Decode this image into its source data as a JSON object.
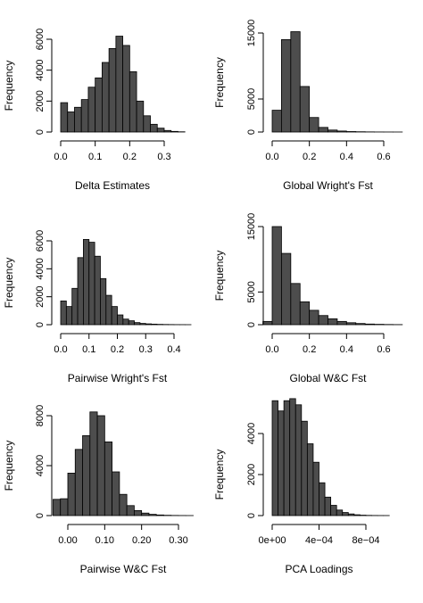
{
  "figure": {
    "bar_fill": "#4d4d4d",
    "bar_stroke": "#000000"
  },
  "chart_data": [
    {
      "type": "bar",
      "xlabel": "Delta Estimates",
      "ylabel": "Frequency",
      "bin_edges": [
        0,
        0.02,
        0.04,
        0.06,
        0.08,
        0.1,
        0.12,
        0.14,
        0.16,
        0.18,
        0.2,
        0.22,
        0.24,
        0.26,
        0.28,
        0.3,
        0.32,
        0.34,
        0.36
      ],
      "values": [
        1900,
        1300,
        1600,
        2100,
        2900,
        3500,
        4500,
        5400,
        6200,
        5600,
        3900,
        2000,
        1050,
        500,
        250,
        100,
        40,
        15
      ],
      "xticks": [
        0.0,
        0.1,
        0.2,
        0.3
      ],
      "xtick_labels": [
        "0.0",
        "0.1",
        "0.2",
        "0.3"
      ],
      "yticks": [
        0,
        2000,
        4000,
        6000
      ],
      "ytick_labels": [
        "0",
        "2000",
        "4000",
        "6000"
      ],
      "xlim": [
        0,
        0.36
      ],
      "ylim": [
        0,
        6000
      ]
    },
    {
      "type": "bar",
      "xlabel": "Global Wright's Fst",
      "ylabel": "Frequency",
      "bin_edges": [
        0,
        0.05,
        0.1,
        0.15,
        0.2,
        0.25,
        0.3,
        0.35,
        0.4,
        0.45,
        0.5,
        0.55,
        0.6,
        0.65,
        0.7
      ],
      "values": [
        3300,
        14000,
        15200,
        6900,
        2200,
        700,
        300,
        150,
        70,
        40,
        20,
        10,
        5,
        3
      ],
      "xticks": [
        0.0,
        0.2,
        0.4,
        0.6
      ],
      "xtick_labels": [
        "0.0",
        "0.2",
        "0.4",
        "0.6"
      ],
      "yticks": [
        0,
        5000,
        15000
      ],
      "ytick_labels": [
        "0",
        "5000",
        "15000"
      ],
      "xlim": [
        0,
        0.7
      ],
      "ylim": [
        0,
        15000
      ]
    },
    {
      "type": "bar",
      "xlabel": "Pairwise Wright's Fst",
      "ylabel": "Frequency",
      "bin_edges": [
        0,
        0.02,
        0.04,
        0.06,
        0.08,
        0.1,
        0.12,
        0.14,
        0.16,
        0.18,
        0.2,
        0.22,
        0.24,
        0.26,
        0.28,
        0.3,
        0.32,
        0.34,
        0.36,
        0.38,
        0.4,
        0.42,
        0.44,
        0.46
      ],
      "values": [
        1700,
        1300,
        2600,
        4800,
        6100,
        5900,
        4900,
        3300,
        2100,
        1300,
        700,
        400,
        280,
        150,
        90,
        60,
        40,
        25,
        15,
        10,
        6,
        4,
        2
      ],
      "xticks": [
        0.0,
        0.1,
        0.2,
        0.3,
        0.4
      ],
      "xtick_labels": [
        "0.0",
        "0.1",
        "0.2",
        "0.3",
        "0.4"
      ],
      "yticks": [
        0,
        2000,
        4000,
        6000
      ],
      "ytick_labels": [
        "0",
        "2000",
        "4000",
        "6000"
      ],
      "xlim": [
        0,
        0.46
      ],
      "ylim": [
        0,
        6000
      ]
    },
    {
      "type": "bar",
      "xlabel": "Global W&C Fst",
      "ylabel": "Frequency",
      "bin_edges": [
        -0.05,
        0,
        0.05,
        0.1,
        0.15,
        0.2,
        0.25,
        0.3,
        0.35,
        0.4,
        0.45,
        0.5,
        0.55,
        0.6,
        0.65,
        0.7
      ],
      "values": [
        500,
        15000,
        10900,
        6300,
        3500,
        2200,
        1400,
        900,
        500,
        300,
        180,
        100,
        60,
        30,
        15
      ],
      "xticks": [
        0.0,
        0.2,
        0.4,
        0.6
      ],
      "xtick_labels": [
        "0.0",
        "0.2",
        "0.4",
        "0.6"
      ],
      "yticks": [
        0,
        5000,
        15000
      ],
      "ytick_labels": [
        "0",
        "5000",
        "15000"
      ],
      "xlim": [
        -0.05,
        0.7
      ],
      "ylim": [
        0,
        15000
      ]
    },
    {
      "type": "bar",
      "xlabel": "Pairwise W&C Fst",
      "ylabel": "Frequency",
      "bin_edges": [
        -0.04,
        -0.02,
        0,
        0.02,
        0.04,
        0.06,
        0.08,
        0.1,
        0.12,
        0.14,
        0.16,
        0.18,
        0.2,
        0.22,
        0.24,
        0.26,
        0.28,
        0.3,
        0.32,
        0.34
      ],
      "values": [
        1300,
        1350,
        3400,
        5300,
        6400,
        8300,
        8000,
        5900,
        3500,
        1700,
        800,
        400,
        200,
        100,
        50,
        25,
        12,
        6,
        3
      ],
      "xticks": [
        0.0,
        0.1,
        0.2,
        0.3
      ],
      "xtick_labels": [
        "0.00",
        "0.10",
        "0.20",
        "0.30"
      ],
      "yticks": [
        0,
        4000,
        8000
      ],
      "ytick_labels": [
        "0",
        "4000",
        "8000"
      ],
      "xlim": [
        -0.04,
        0.34
      ],
      "ylim": [
        0,
        8000
      ]
    },
    {
      "type": "bar",
      "xlabel": "PCA Loadings",
      "ylabel": "Frequency",
      "bin_edges": [
        0,
        5e-05,
        0.0001,
        0.00015,
        0.0002,
        0.00025,
        0.0003,
        0.00035,
        0.0004,
        0.00045,
        0.0005,
        0.00055,
        0.0006,
        0.00065,
        0.0007,
        0.00075,
        0.0008,
        0.00085,
        0.0009,
        0.00095,
        0.001
      ],
      "values": [
        5600,
        5100,
        5600,
        5700,
        5400,
        4600,
        3500,
        2600,
        1600,
        900,
        500,
        270,
        150,
        80,
        40,
        20,
        10,
        5,
        3,
        2
      ],
      "xticks": [
        0,
        0.0004,
        0.0008
      ],
      "xtick_labels": [
        "0e+00",
        "4e−04",
        "8e−04"
      ],
      "yticks": [
        0,
        2000,
        4000
      ],
      "ytick_labels": [
        "0",
        "2000",
        "4000"
      ],
      "xlim": [
        0,
        0.001
      ],
      "ylim": [
        0,
        6000
      ]
    }
  ]
}
